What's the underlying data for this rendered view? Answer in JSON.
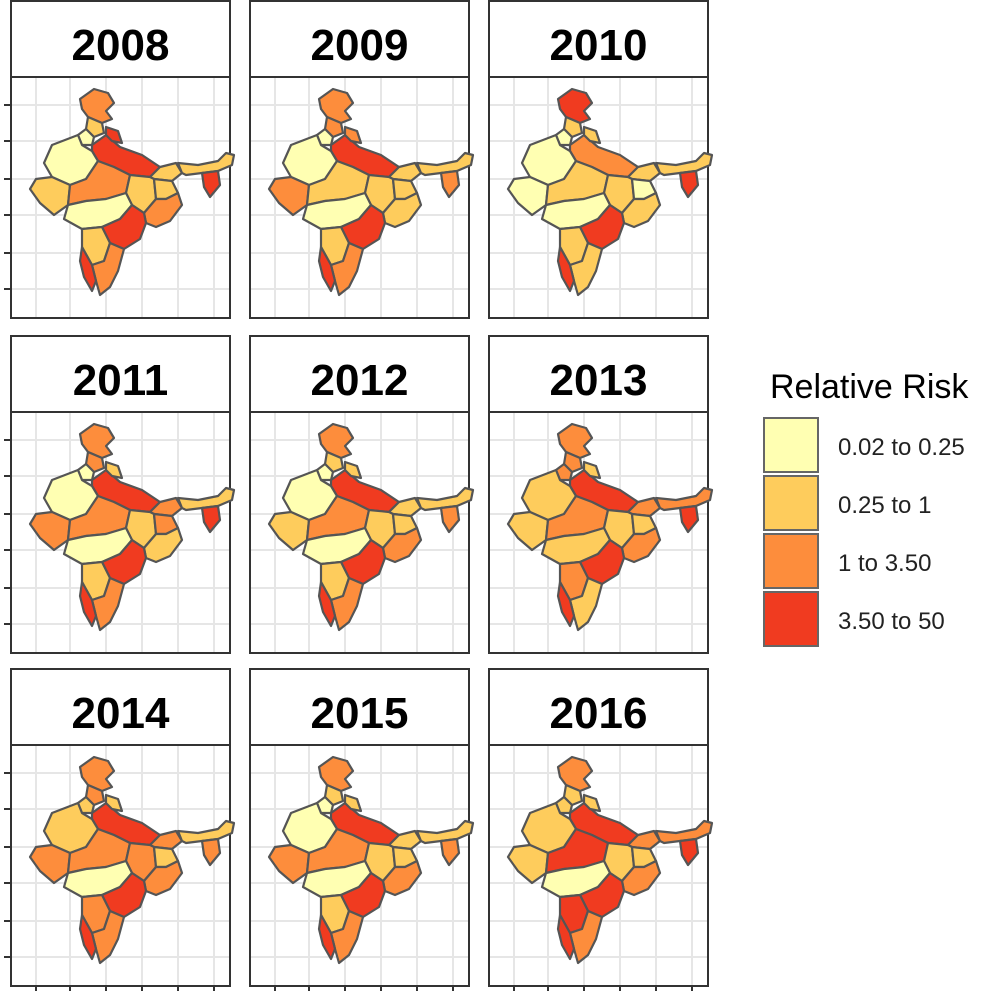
{
  "legend": {
    "title": "Relative Risk",
    "items": [
      {
        "label": "0.02 to 0.25",
        "color": "#FFFFB2"
      },
      {
        "label": "0.25 to 1",
        "color": "#FECC5C"
      },
      {
        "label": "1 to 3.50",
        "color": "#FD8D3C"
      },
      {
        "label": "3.50 to 50",
        "color": "#F03B20"
      }
    ]
  },
  "panels": [
    {
      "year": "2008",
      "regions": [
        2,
        1,
        0,
        3,
        3,
        1,
        0,
        1,
        2,
        1,
        1,
        0,
        2,
        3,
        1,
        2,
        3,
        1,
        3
      ]
    },
    {
      "year": "2009",
      "regions": [
        2,
        2,
        0,
        3,
        2,
        1,
        0,
        2,
        1,
        1,
        1,
        0,
        1,
        3,
        1,
        2,
        3,
        1,
        2
      ]
    },
    {
      "year": "2010",
      "regions": [
        3,
        1,
        0,
        2,
        1,
        1,
        0,
        0,
        1,
        1,
        0,
        0,
        1,
        3,
        1,
        1,
        3,
        1,
        3
      ]
    },
    {
      "year": "2011",
      "regions": [
        2,
        2,
        0,
        3,
        1,
        2,
        0,
        2,
        2,
        1,
        2,
        0,
        1,
        3,
        1,
        2,
        3,
        1,
        3
      ]
    },
    {
      "year": "2012",
      "regions": [
        2,
        1,
        0,
        3,
        1,
        1,
        0,
        1,
        2,
        1,
        1,
        0,
        2,
        3,
        1,
        2,
        3,
        1,
        2
      ]
    },
    {
      "year": "2013",
      "regions": [
        2,
        2,
        2,
        3,
        1,
        2,
        1,
        1,
        2,
        1,
        1,
        1,
        2,
        3,
        2,
        1,
        3,
        2,
        3
      ]
    },
    {
      "year": "2014",
      "regions": [
        2,
        2,
        1,
        3,
        1,
        2,
        1,
        2,
        2,
        2,
        1,
        0,
        2,
        3,
        2,
        2,
        3,
        1,
        2
      ]
    },
    {
      "year": "2015",
      "regions": [
        2,
        1,
        0,
        3,
        1,
        1,
        0,
        2,
        2,
        1,
        1,
        0,
        2,
        3,
        1,
        2,
        3,
        1,
        2
      ]
    },
    {
      "year": "2016",
      "regions": [
        2,
        1,
        1,
        3,
        1,
        2,
        1,
        1,
        3,
        1,
        1,
        0,
        2,
        3,
        3,
        2,
        3,
        2,
        3
      ]
    }
  ]
}
